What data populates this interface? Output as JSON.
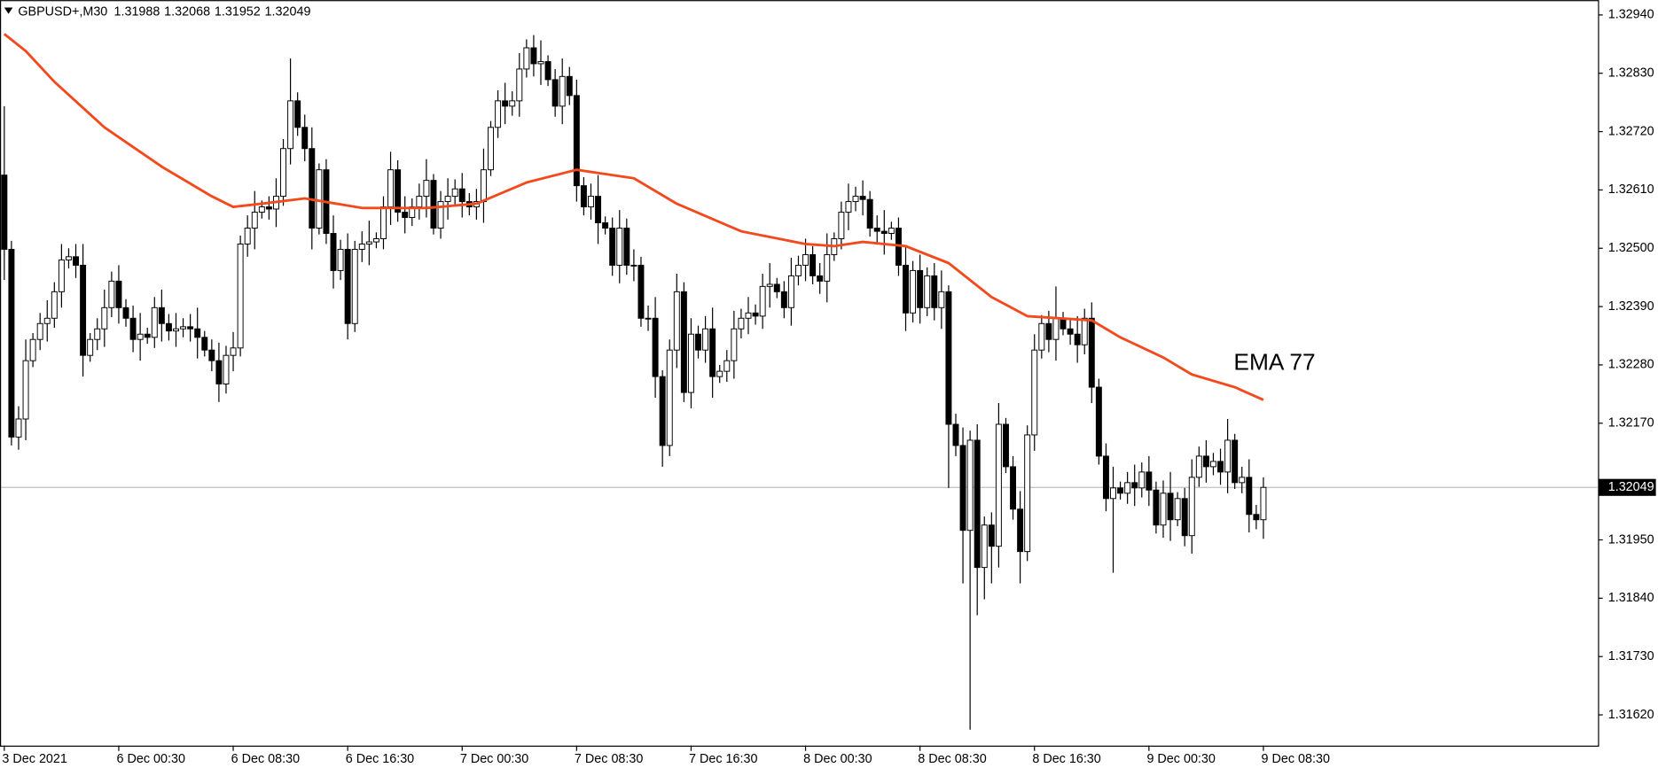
{
  "chart_data": {
    "type": "candlestick",
    "symbol": "GBPUSD+,M30",
    "up_color": "#ffffff",
    "down_color": "#000000",
    "price_line_color": "#c0c0c0",
    "open": [
      1.32638,
      1.32498,
      1.32144,
      1.32178,
      1.32288,
      1.32328,
      1.32358,
      1.32368,
      1.32418,
      1.32478,
      1.32484,
      1.32468,
      1.32298,
      1.32328,
      1.32348,
      1.32388,
      1.32438,
      1.32388,
      1.32368,
      1.32328,
      1.32338,
      1.32332,
      1.32388,
      1.32358,
      1.32344,
      1.32348,
      1.32352,
      1.32348,
      1.32332,
      1.32308,
      1.32288,
      1.32244,
      1.32298,
      1.32312,
      1.32508,
      1.32538,
      1.32568,
      1.32578,
      1.32574,
      1.32598,
      1.32688,
      1.32778,
      1.32728,
      1.32688,
      1.32538,
      1.32648,
      1.32528,
      1.32458,
      1.32498,
      1.32358,
      1.32498,
      1.32508,
      1.32512,
      1.32518,
      1.32578,
      1.32648,
      1.32568,
      1.32558,
      1.32578,
      1.32598,
      1.32628,
      1.32538,
      1.32588,
      1.32598,
      1.32612,
      1.32588,
      1.32578,
      1.32588,
      1.32648,
      1.32728,
      1.32778,
      1.32768,
      1.32778,
      1.32838,
      1.32878,
      1.32848,
      1.32852,
      1.32818,
      1.32768,
      1.32824,
      1.32788,
      1.32618,
      1.32578,
      1.32598,
      1.32548,
      1.32538,
      1.32468,
      1.32538,
      1.32468,
      1.32468,
      1.32368,
      1.32368,
      1.32258,
      1.32128,
      1.32308,
      1.32418,
      1.32228,
      1.32338,
      1.32308,
      1.32348,
      1.32258,
      1.32268,
      1.32288,
      1.32348,
      1.32368,
      1.32378,
      1.32372,
      1.32428,
      1.32432,
      1.32418,
      1.32388,
      1.32448,
      1.32468,
      1.32488,
      1.32448,
      1.32438,
      1.32488,
      1.32518,
      1.32568,
      1.32588,
      1.32598,
      1.32592,
      1.32538,
      1.32532,
      1.32528,
      1.32538,
      1.32468,
      1.32378,
      1.32458,
      1.32388,
      1.32448,
      1.32388,
      1.32418,
      1.32168,
      1.32128,
      1.31968,
      1.32138,
      1.31898,
      1.31978,
      1.31938,
      1.32168,
      1.32088,
      1.32008,
      1.31928,
      1.32148,
      1.32308,
      1.32358,
      1.32328,
      1.32368,
      1.32348,
      1.32338,
      1.32318,
      1.32368,
      1.32238,
      1.32108,
      1.32028,
      1.32048,
      1.32038,
      1.32058,
      1.32048,
      1.32078,
      1.32044,
      1.31978,
      1.32038,
      1.31988,
      1.32028,
      1.31958,
      1.32068,
      1.32108,
      1.32088,
      1.32098,
      1.32078,
      1.32138,
      1.32058,
      1.32068,
      1.31998,
      1.31988
    ],
    "high": [
      1.32768,
      1.32514,
      1.32202,
      1.32328,
      1.3234,
      1.32378,
      1.32402,
      1.32436,
      1.32508,
      1.325,
      1.32508,
      1.32508,
      1.3234,
      1.32368,
      1.32422,
      1.32456,
      1.32468,
      1.32404,
      1.32392,
      1.32378,
      1.3235,
      1.32408,
      1.32422,
      1.32376,
      1.32378,
      1.32368,
      1.32376,
      1.32388,
      1.32344,
      1.32328,
      1.32322,
      1.32316,
      1.32342,
      1.32524,
      1.32562,
      1.32608,
      1.3259,
      1.32598,
      1.32632,
      1.32706,
      1.32858,
      1.32794,
      1.32752,
      1.32728,
      1.3266,
      1.32668,
      1.32562,
      1.32516,
      1.32528,
      1.32514,
      1.32532,
      1.32552,
      1.3253,
      1.32598,
      1.32682,
      1.32666,
      1.32598,
      1.32594,
      1.32622,
      1.32668,
      1.3264,
      1.32608,
      1.32632,
      1.3263,
      1.32642,
      1.32604,
      1.32612,
      1.32688,
      1.3274,
      1.32798,
      1.32812,
      1.32796,
      1.32868,
      1.32894,
      1.32902,
      1.32892,
      1.32864,
      1.32838,
      1.32858,
      1.32842,
      1.32818,
      1.32634,
      1.32622,
      1.32638,
      1.3256,
      1.32558,
      1.32572,
      1.32556,
      1.32498,
      1.32484,
      1.32392,
      1.32408,
      1.3227,
      1.32328,
      1.32452,
      1.32436,
      1.32368,
      1.32354,
      1.32372,
      1.32388,
      1.3228,
      1.32308,
      1.32382,
      1.32386,
      1.32408,
      1.32394,
      1.32452,
      1.32472,
      1.32444,
      1.32438,
      1.32482,
      1.32486,
      1.32518,
      1.32504,
      1.32472,
      1.32528,
      1.3253,
      1.32588,
      1.32622,
      1.32616,
      1.32628,
      1.32608,
      1.32562,
      1.32572,
      1.3255,
      1.32558,
      1.32502,
      1.32476,
      1.32488,
      1.32464,
      1.32472,
      1.32458,
      1.3243,
      1.32188,
      1.32162,
      1.32156,
      1.32168,
      1.31994,
      1.32002,
      1.32208,
      1.3218,
      1.32108,
      1.32042,
      1.32166,
      1.32338,
      1.32374,
      1.32382,
      1.32428,
      1.3238,
      1.32368,
      1.32372,
      1.32386,
      1.32398,
      1.32254,
      1.32132,
      1.32088,
      1.3206,
      1.32078,
      1.32092,
      1.32096,
      1.32108,
      1.3206,
      1.32062,
      1.32078,
      1.3204,
      1.32048,
      1.32102,
      1.32126,
      1.32138,
      1.32114,
      1.32122,
      1.32178,
      1.3215,
      1.32088,
      1.32102,
      1.32016,
      1.32068
    ],
    "low": [
      1.3244,
      1.32128,
      1.3212,
      1.32138,
      1.32276,
      1.32308,
      1.32324,
      1.3235,
      1.32388,
      1.32462,
      1.32444,
      1.32258,
      1.32286,
      1.32308,
      1.32314,
      1.3237,
      1.32358,
      1.32352,
      1.32304,
      1.32288,
      1.3232,
      1.32312,
      1.32324,
      1.32326,
      1.32314,
      1.32332,
      1.32324,
      1.32292,
      1.32296,
      1.32268,
      1.3221,
      1.32226,
      1.32268,
      1.32296,
      1.32484,
      1.32498,
      1.32556,
      1.32554,
      1.3254,
      1.3258,
      1.32658,
      1.32712,
      1.32664,
      1.32498,
      1.32526,
      1.32508,
      1.32424,
      1.3244,
      1.32328,
      1.32342,
      1.32474,
      1.32468,
      1.325,
      1.32498,
      1.32544,
      1.3255,
      1.32528,
      1.32542,
      1.32554,
      1.32558,
      1.32526,
      1.32518,
      1.32554,
      1.3258,
      1.32558,
      1.32562,
      1.32554,
      1.32548,
      1.32636,
      1.32708,
      1.32734,
      1.3275,
      1.32748,
      1.32822,
      1.32824,
      1.32808,
      1.32806,
      1.32748,
      1.32734,
      1.3277,
      1.32588,
      1.32562,
      1.32554,
      1.32508,
      1.32526,
      1.32448,
      1.32434,
      1.3245,
      1.32438,
      1.32352,
      1.32344,
      1.32218,
      1.32088,
      1.32108,
      1.32274,
      1.3221,
      1.32198,
      1.32292,
      1.32284,
      1.32218,
      1.32246,
      1.32248,
      1.32254,
      1.3233,
      1.32338,
      1.32356,
      1.32348,
      1.32388,
      1.32406,
      1.32368,
      1.32354,
      1.3243,
      1.32438,
      1.32432,
      1.32414,
      1.32398,
      1.32476,
      1.32498,
      1.32534,
      1.3257,
      1.32562,
      1.32522,
      1.32508,
      1.32488,
      1.32516,
      1.32448,
      1.32344,
      1.3236,
      1.32358,
      1.32372,
      1.32364,
      1.32348,
      1.32048,
      1.32108,
      1.31868,
      1.31592,
      1.31808,
      1.31838,
      1.31868,
      1.31898,
      1.32076,
      1.31988,
      1.31868,
      1.3191,
      1.32118,
      1.32292,
      1.32304,
      1.32288,
      1.32336,
      1.32318,
      1.32284,
      1.323,
      1.32208,
      1.32092,
      1.32004,
      1.31888,
      1.32026,
      1.32018,
      1.32014,
      1.3203,
      1.32014,
      1.31962,
      1.31954,
      1.31948,
      1.31976,
      1.31938,
      1.31924,
      1.3205,
      1.32058,
      1.32072,
      1.32054,
      1.32038,
      1.32046,
      1.32038,
      1.31964,
      1.3197,
      1.31952
    ],
    "close": [
      1.32498,
      1.32144,
      1.32178,
      1.32288,
      1.32328,
      1.32358,
      1.32368,
      1.32418,
      1.32478,
      1.32484,
      1.32468,
      1.32298,
      1.32328,
      1.32348,
      1.32388,
      1.32438,
      1.32388,
      1.32368,
      1.32328,
      1.32338,
      1.32332,
      1.32388,
      1.32358,
      1.32344,
      1.32348,
      1.32352,
      1.32348,
      1.32332,
      1.32308,
      1.32288,
      1.32244,
      1.32298,
      1.32312,
      1.32508,
      1.32538,
      1.32568,
      1.32578,
      1.32574,
      1.32598,
      1.32688,
      1.32778,
      1.32728,
      1.32688,
      1.32538,
      1.32648,
      1.32528,
      1.32458,
      1.32498,
      1.32358,
      1.32498,
      1.32508,
      1.32512,
      1.32518,
      1.32578,
      1.32648,
      1.32568,
      1.32558,
      1.32578,
      1.32598,
      1.32628,
      1.32538,
      1.32588,
      1.32598,
      1.32612,
      1.32588,
      1.32578,
      1.32588,
      1.32648,
      1.32728,
      1.32778,
      1.32768,
      1.32778,
      1.32838,
      1.32878,
      1.32848,
      1.32852,
      1.32818,
      1.32768,
      1.32824,
      1.32788,
      1.32618,
      1.32578,
      1.32598,
      1.32548,
      1.32538,
      1.32468,
      1.32538,
      1.32468,
      1.32468,
      1.32368,
      1.32368,
      1.32258,
      1.32128,
      1.32308,
      1.32418,
      1.32228,
      1.32338,
      1.32308,
      1.32348,
      1.32258,
      1.32268,
      1.32288,
      1.32348,
      1.32368,
      1.32378,
      1.32372,
      1.32428,
      1.32432,
      1.32418,
      1.32388,
      1.32448,
      1.32468,
      1.32488,
      1.32448,
      1.32438,
      1.32488,
      1.32518,
      1.32568,
      1.32588,
      1.32598,
      1.32592,
      1.32538,
      1.32532,
      1.32528,
      1.32538,
      1.32468,
      1.32378,
      1.32458,
      1.32388,
      1.32448,
      1.32388,
      1.32418,
      1.32168,
      1.32128,
      1.31968,
      1.32138,
      1.31898,
      1.31978,
      1.31938,
      1.32168,
      1.32088,
      1.32008,
      1.31928,
      1.32148,
      1.32308,
      1.32358,
      1.32328,
      1.32368,
      1.32348,
      1.32338,
      1.32318,
      1.32368,
      1.32238,
      1.32108,
      1.32028,
      1.32048,
      1.32038,
      1.32058,
      1.32048,
      1.32078,
      1.32044,
      1.31978,
      1.32038,
      1.31988,
      1.32028,
      1.31958,
      1.32068,
      1.32108,
      1.32088,
      1.32098,
      1.32078,
      1.32138,
      1.32058,
      1.32068,
      1.31998,
      1.31988,
      1.32049
    ],
    "series": [
      {
        "name": "EMA 77",
        "color": "#f24a1c",
        "label_color": "#e5231f",
        "x": [
          0,
          3,
          7,
          14,
          22,
          29,
          32,
          36,
          42,
          50,
          59,
          66,
          73,
          80,
          88,
          94,
          103,
          112,
          116,
          120,
          126,
          132,
          138,
          143,
          152,
          156,
          162,
          166,
          172,
          176
        ],
        "values": [
          1.32904,
          1.32872,
          1.32814,
          1.32728,
          1.32654,
          1.32598,
          1.32578,
          1.32584,
          1.32594,
          1.32576,
          1.32576,
          1.32584,
          1.32624,
          1.32648,
          1.32632,
          1.32584,
          1.32532,
          1.32508,
          1.32504,
          1.32512,
          1.32504,
          1.32472,
          1.32408,
          1.32372,
          1.32364,
          1.32332,
          1.32294,
          1.32262,
          1.32238,
          1.32214
        ]
      }
    ],
    "xlim": [
      -0.6,
      222.7
    ],
    "ylim": [
      1.31562,
      1.32964
    ],
    "xticks": [
      {
        "value": 0,
        "label": "3 Dec 2021"
      },
      {
        "value": 16,
        "label": "6 Dec 00:30"
      },
      {
        "value": 32,
        "label": "6 Dec 08:30"
      },
      {
        "value": 48,
        "label": "6 Dec 16:30"
      },
      {
        "value": 64,
        "label": "7 Dec 00:30"
      },
      {
        "value": 80,
        "label": "7 Dec 08:30"
      },
      {
        "value": 96,
        "label": "7 Dec 16:30"
      },
      {
        "value": 112,
        "label": "8 Dec 00:30"
      },
      {
        "value": 128,
        "label": "8 Dec 08:30"
      },
      {
        "value": 144,
        "label": "8 Dec 16:30"
      },
      {
        "value": 160,
        "label": "9 Dec 00:30"
      },
      {
        "value": 176,
        "label": "9 Dec 08:30"
      }
    ],
    "yticks": [
      {
        "value": 1.3294,
        "label": "1.32940"
      },
      {
        "value": 1.3283,
        "label": "1.32830"
      },
      {
        "value": 1.3272,
        "label": "1.32720"
      },
      {
        "value": 1.3261,
        "label": "1.32610"
      },
      {
        "value": 1.325,
        "label": "1.32500"
      },
      {
        "value": 1.3239,
        "label": "1.32390"
      },
      {
        "value": 1.3228,
        "label": "1.32280"
      },
      {
        "value": 1.3217,
        "label": "1.32170"
      },
      {
        "value": 1.3195,
        "label": "1.31950"
      },
      {
        "value": 1.3184,
        "label": "1.31840"
      },
      {
        "value": 1.3173,
        "label": "1.31730"
      },
      {
        "value": 1.3162,
        "label": "1.31620"
      }
    ]
  }
}
